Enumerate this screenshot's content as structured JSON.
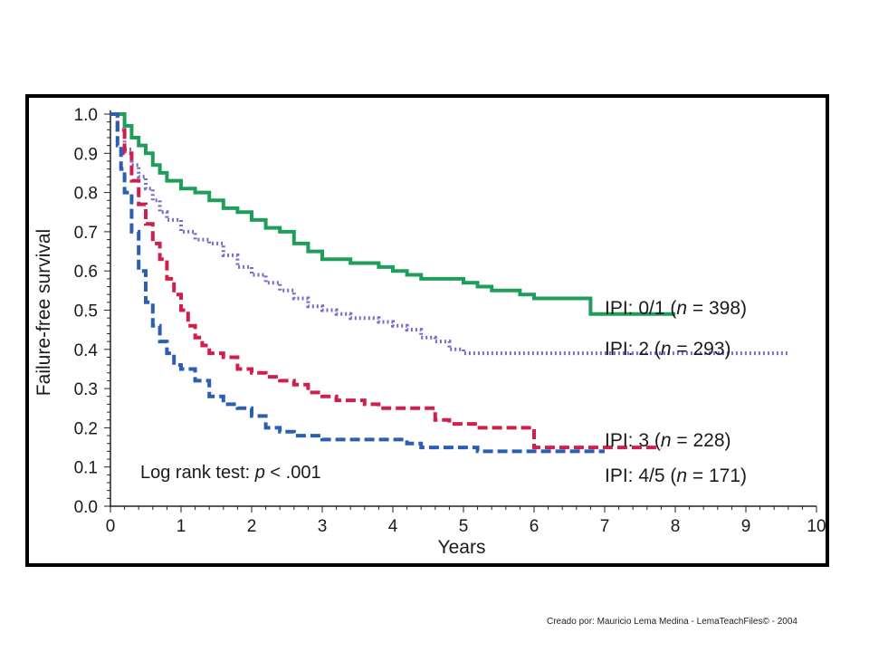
{
  "slide": {
    "footer": "Creado por: Mauricio Lema Medina - LemaTeachFiles© - 2004"
  },
  "chart_data": {
    "type": "line",
    "step": true,
    "xlabel": "Years",
    "ylabel": "Failure-free survival",
    "xlim": [
      0,
      10
    ],
    "ylim": [
      0,
      1
    ],
    "x_ticks": [
      0,
      1,
      2,
      3,
      4,
      5,
      6,
      7,
      8,
      9,
      10
    ],
    "y_ticks": [
      0.0,
      0.1,
      0.2,
      0.3,
      0.4,
      0.5,
      0.6,
      0.7,
      0.8,
      0.9,
      1.0
    ],
    "y_tick_labels": [
      "0.0",
      "0.1",
      "0.2",
      "0.3",
      "0.4",
      "0.5",
      "0.6",
      "0.7",
      "0.8",
      "0.9",
      "1.0"
    ],
    "grid": false,
    "annotation": "Log rank test: p < .001",
    "series": [
      {
        "name": "IPI: 0/1 (n = 398)",
        "color": "#1e9e5a",
        "style": "solid",
        "x": [
          0.0,
          0.2,
          0.3,
          0.4,
          0.5,
          0.6,
          0.7,
          0.8,
          1.0,
          1.2,
          1.4,
          1.6,
          1.8,
          2.0,
          2.2,
          2.4,
          2.6,
          2.8,
          3.0,
          3.2,
          3.4,
          3.6,
          3.8,
          4.0,
          4.2,
          4.4,
          4.6,
          4.8,
          5.0,
          5.2,
          5.4,
          5.6,
          5.8,
          6.0,
          6.2,
          6.4,
          6.6,
          6.8,
          7.0,
          7.5,
          8.0
        ],
        "y": [
          1.0,
          0.97,
          0.94,
          0.92,
          0.9,
          0.87,
          0.85,
          0.83,
          0.81,
          0.8,
          0.78,
          0.76,
          0.75,
          0.73,
          0.71,
          0.7,
          0.67,
          0.65,
          0.63,
          0.63,
          0.62,
          0.62,
          0.61,
          0.6,
          0.59,
          0.58,
          0.58,
          0.58,
          0.57,
          0.56,
          0.55,
          0.55,
          0.54,
          0.53,
          0.53,
          0.53,
          0.53,
          0.49,
          0.49,
          0.49,
          0.49
        ]
      },
      {
        "name": "IPI: 2 (n = 293)",
        "color": "#7b68c8",
        "style": "dotted",
        "x": [
          0.0,
          0.1,
          0.2,
          0.3,
          0.4,
          0.5,
          0.6,
          0.7,
          0.8,
          1.0,
          1.2,
          1.4,
          1.6,
          1.8,
          2.0,
          2.2,
          2.4,
          2.6,
          2.8,
          3.0,
          3.2,
          3.4,
          3.6,
          3.8,
          4.0,
          4.2,
          4.4,
          4.6,
          4.8,
          5.0,
          5.5,
          6.0,
          7.0,
          8.0,
          9.0,
          9.6
        ],
        "y": [
          1.0,
          0.96,
          0.91,
          0.87,
          0.84,
          0.81,
          0.78,
          0.75,
          0.73,
          0.7,
          0.68,
          0.67,
          0.64,
          0.61,
          0.59,
          0.57,
          0.55,
          0.53,
          0.51,
          0.5,
          0.49,
          0.48,
          0.48,
          0.47,
          0.46,
          0.45,
          0.43,
          0.42,
          0.4,
          0.39,
          0.39,
          0.39,
          0.39,
          0.39,
          0.39,
          0.39
        ]
      },
      {
        "name": "IPI: 3 (n = 228)",
        "color": "#d01f4c",
        "style": "dashed",
        "x": [
          0.0,
          0.1,
          0.2,
          0.3,
          0.4,
          0.5,
          0.6,
          0.7,
          0.8,
          0.9,
          1.0,
          1.1,
          1.2,
          1.3,
          1.4,
          1.6,
          1.8,
          2.0,
          2.2,
          2.4,
          2.6,
          2.8,
          3.0,
          3.2,
          3.4,
          3.6,
          3.8,
          4.0,
          4.2,
          4.4,
          4.6,
          4.8,
          5.0,
          5.2,
          5.4,
          5.6,
          5.8,
          6.0,
          6.5,
          7.0,
          7.5,
          7.8
        ],
        "y": [
          1.0,
          0.96,
          0.9,
          0.83,
          0.77,
          0.72,
          0.67,
          0.63,
          0.58,
          0.54,
          0.5,
          0.46,
          0.43,
          0.41,
          0.39,
          0.38,
          0.35,
          0.34,
          0.33,
          0.32,
          0.31,
          0.29,
          0.28,
          0.27,
          0.27,
          0.26,
          0.25,
          0.25,
          0.25,
          0.25,
          0.22,
          0.21,
          0.21,
          0.2,
          0.2,
          0.2,
          0.2,
          0.15,
          0.15,
          0.15,
          0.15,
          0.15
        ]
      },
      {
        "name": "IPI: 4/5 (n = 171)",
        "color": "#2a5fb4",
        "style": "dashed",
        "x": [
          0.0,
          0.1,
          0.15,
          0.2,
          0.3,
          0.4,
          0.5,
          0.6,
          0.7,
          0.8,
          0.9,
          1.0,
          1.2,
          1.4,
          1.6,
          1.8,
          2.0,
          2.2,
          2.4,
          2.6,
          2.8,
          3.0,
          3.5,
          4.0,
          4.2,
          4.4,
          4.6,
          4.8,
          5.0,
          5.2,
          5.5,
          5.8,
          6.0,
          6.5,
          7.0
        ],
        "y": [
          1.0,
          0.92,
          0.86,
          0.8,
          0.7,
          0.6,
          0.52,
          0.46,
          0.42,
          0.39,
          0.36,
          0.35,
          0.32,
          0.28,
          0.26,
          0.25,
          0.23,
          0.2,
          0.19,
          0.18,
          0.18,
          0.17,
          0.17,
          0.17,
          0.16,
          0.15,
          0.15,
          0.15,
          0.15,
          0.14,
          0.14,
          0.14,
          0.14,
          0.14,
          0.14
        ]
      }
    ]
  }
}
